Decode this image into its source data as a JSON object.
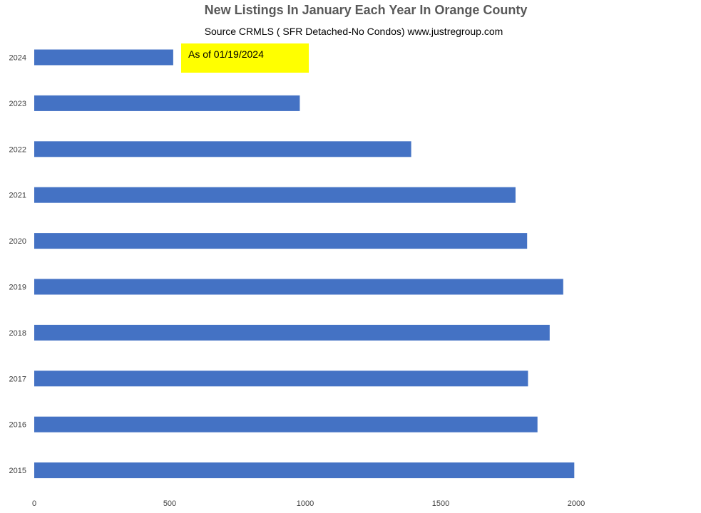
{
  "chart_data": {
    "type": "bar",
    "orientation": "horizontal",
    "title": "New Listings In January Each Year In Orange County",
    "subtitle": "Source CRMLS ( SFR Detached-No Condos)  www.justregroup.com",
    "categories": [
      "2024",
      "2023",
      "2022",
      "2021",
      "2020",
      "2019",
      "2018",
      "2017",
      "2016",
      "2015"
    ],
    "values": [
      513,
      980,
      1391,
      1776,
      1819,
      1952,
      1902,
      1822,
      1857,
      1993
    ],
    "xlim": [
      0,
      2500
    ],
    "x_ticks": [
      "0",
      "500",
      "1000",
      "1500",
      "2000"
    ],
    "x_tick_values": [
      0,
      500,
      1000,
      1500,
      2000
    ],
    "xlabel": "",
    "ylabel": "",
    "grid": false,
    "legend": "none",
    "bar_color": "#4472C4",
    "annotation": {
      "text": "As of 01/19/2024",
      "color": "#FFFF00",
      "category": "2024"
    }
  }
}
